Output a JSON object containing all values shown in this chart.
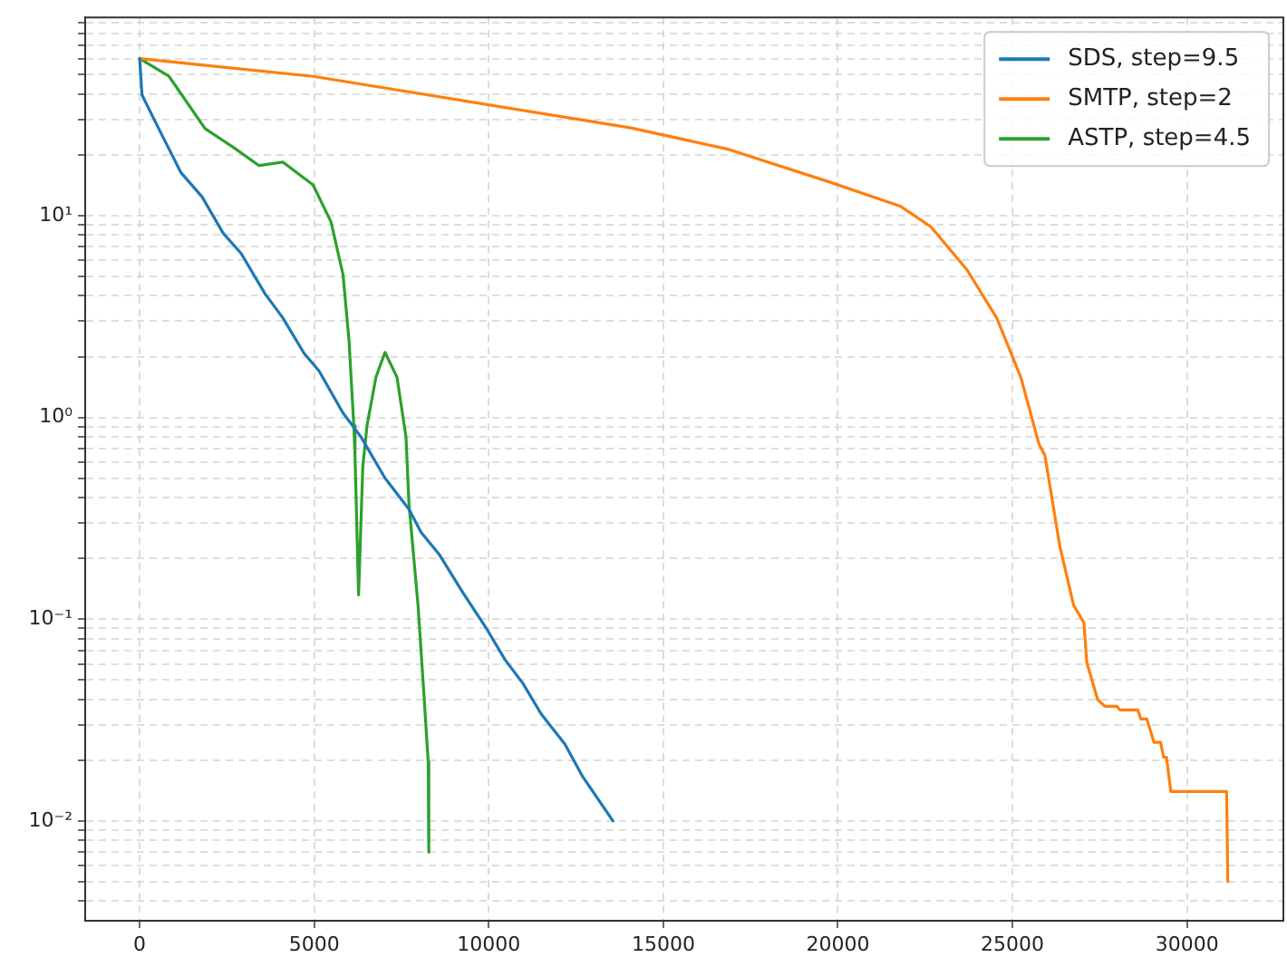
{
  "chart_data": {
    "type": "line",
    "log": "y",
    "grid": true,
    "legend": "top right",
    "line_style": "solid",
    "xlim": [
      -1560,
      32760
    ],
    "xticks": [
      0,
      5000,
      10000,
      15000,
      20000,
      25000,
      30000
    ],
    "ylim": [
      0.0032,
      96
    ],
    "yticks": [
      {
        "value": 0.004,
        "label": null
      },
      {
        "value": 0.005,
        "label": null
      },
      {
        "value": 0.006,
        "label": null
      },
      {
        "value": 0.007,
        "label": null
      },
      {
        "value": 0.008,
        "label": null
      },
      {
        "value": 0.009,
        "label": null
      },
      {
        "value": 0.01,
        "label": "10⁻²"
      },
      {
        "value": 0.02,
        "label": null
      },
      {
        "value": 0.03,
        "label": null
      },
      {
        "value": 0.04,
        "label": null
      },
      {
        "value": 0.05,
        "label": null
      },
      {
        "value": 0.06,
        "label": null
      },
      {
        "value": 0.07,
        "label": null
      },
      {
        "value": 0.08,
        "label": null
      },
      {
        "value": 0.09,
        "label": null
      },
      {
        "value": 0.1,
        "label": "10⁻¹"
      },
      {
        "value": 0.2,
        "label": null
      },
      {
        "value": 0.3,
        "label": null
      },
      {
        "value": 0.4,
        "label": null
      },
      {
        "value": 0.5,
        "label": null
      },
      {
        "value": 0.6,
        "label": null
      },
      {
        "value": 0.7,
        "label": null
      },
      {
        "value": 0.8,
        "label": null
      },
      {
        "value": 0.9,
        "label": null
      },
      {
        "value": 1,
        "label": "10⁰"
      },
      {
        "value": 2,
        "label": null
      },
      {
        "value": 3,
        "label": null
      },
      {
        "value": 4,
        "label": null
      },
      {
        "value": 5,
        "label": null
      },
      {
        "value": 6,
        "label": null
      },
      {
        "value": 7,
        "label": null
      },
      {
        "value": 8,
        "label": null
      },
      {
        "value": 9,
        "label": null
      },
      {
        "value": 10,
        "label": "10¹"
      },
      {
        "value": 20,
        "label": null
      },
      {
        "value": 30,
        "label": null
      },
      {
        "value": 40,
        "label": null
      },
      {
        "value": 50,
        "label": null
      },
      {
        "value": 60,
        "label": null
      },
      {
        "value": 70,
        "label": null
      },
      {
        "value": 80,
        "label": null
      },
      {
        "value": 90,
        "label": null
      }
    ],
    "series": [
      {
        "name": "SDS, step=9.5",
        "color": "#1f77b4",
        "x": [
          0,
          67,
          500,
          1186,
          1787,
          2388,
          2904,
          3591,
          4107,
          4708,
          5137,
          5825,
          6340,
          7027,
          7715,
          8059,
          8574,
          9262,
          9948,
          10464,
          10979,
          11495,
          12182,
          12697,
          13557
        ],
        "values": [
          60,
          39.6,
          28,
          16.3,
          12.4,
          8.2,
          6.5,
          4.1,
          3.1,
          2.08,
          1.7,
          1.05,
          0.8,
          0.5,
          0.35,
          0.27,
          0.21,
          0.135,
          0.089,
          0.063,
          0.048,
          0.034,
          0.024,
          0.0165,
          0.01
        ]
      },
      {
        "name": "SMTP, step=2",
        "color": "#ff7f0e",
        "x": [
          0,
          4966,
          14072,
          16820,
          19742,
          21804,
          22663,
          23694,
          24553,
          25240,
          25756,
          25928,
          26357,
          26753,
          27046,
          27129,
          27438,
          27645,
          27990,
          28075,
          28591,
          28677,
          28849,
          29054,
          29242,
          29330,
          29412,
          29536,
          31134,
          31168
        ],
        "values": [
          60,
          49,
          27.2,
          21.4,
          14.7,
          11.1,
          8.8,
          5.4,
          3.1,
          1.58,
          0.74,
          0.65,
          0.23,
          0.117,
          0.096,
          0.061,
          0.04,
          0.037,
          0.037,
          0.0355,
          0.0355,
          0.032,
          0.032,
          0.0245,
          0.0245,
          0.0207,
          0.0207,
          0.014,
          0.014,
          0.005
        ]
      },
      {
        "name": "ASTP, step=4.5",
        "color": "#2ca02c",
        "x": [
          0,
          840,
          1872,
          2732,
          3419,
          4107,
          4966,
          5481,
          5825,
          5997,
          6134,
          6168,
          6271,
          6392,
          6512,
          6768,
          7027,
          7371,
          7629,
          7715,
          7974,
          8144,
          8264,
          8282
        ],
        "values": [
          60,
          49,
          27,
          21.5,
          17.7,
          18.4,
          14.2,
          9.3,
          5.1,
          2.4,
          0.91,
          0.65,
          0.132,
          0.57,
          0.91,
          1.58,
          2.1,
          1.58,
          0.8,
          0.37,
          0.117,
          0.042,
          0.0197,
          0.007
        ]
      }
    ]
  }
}
